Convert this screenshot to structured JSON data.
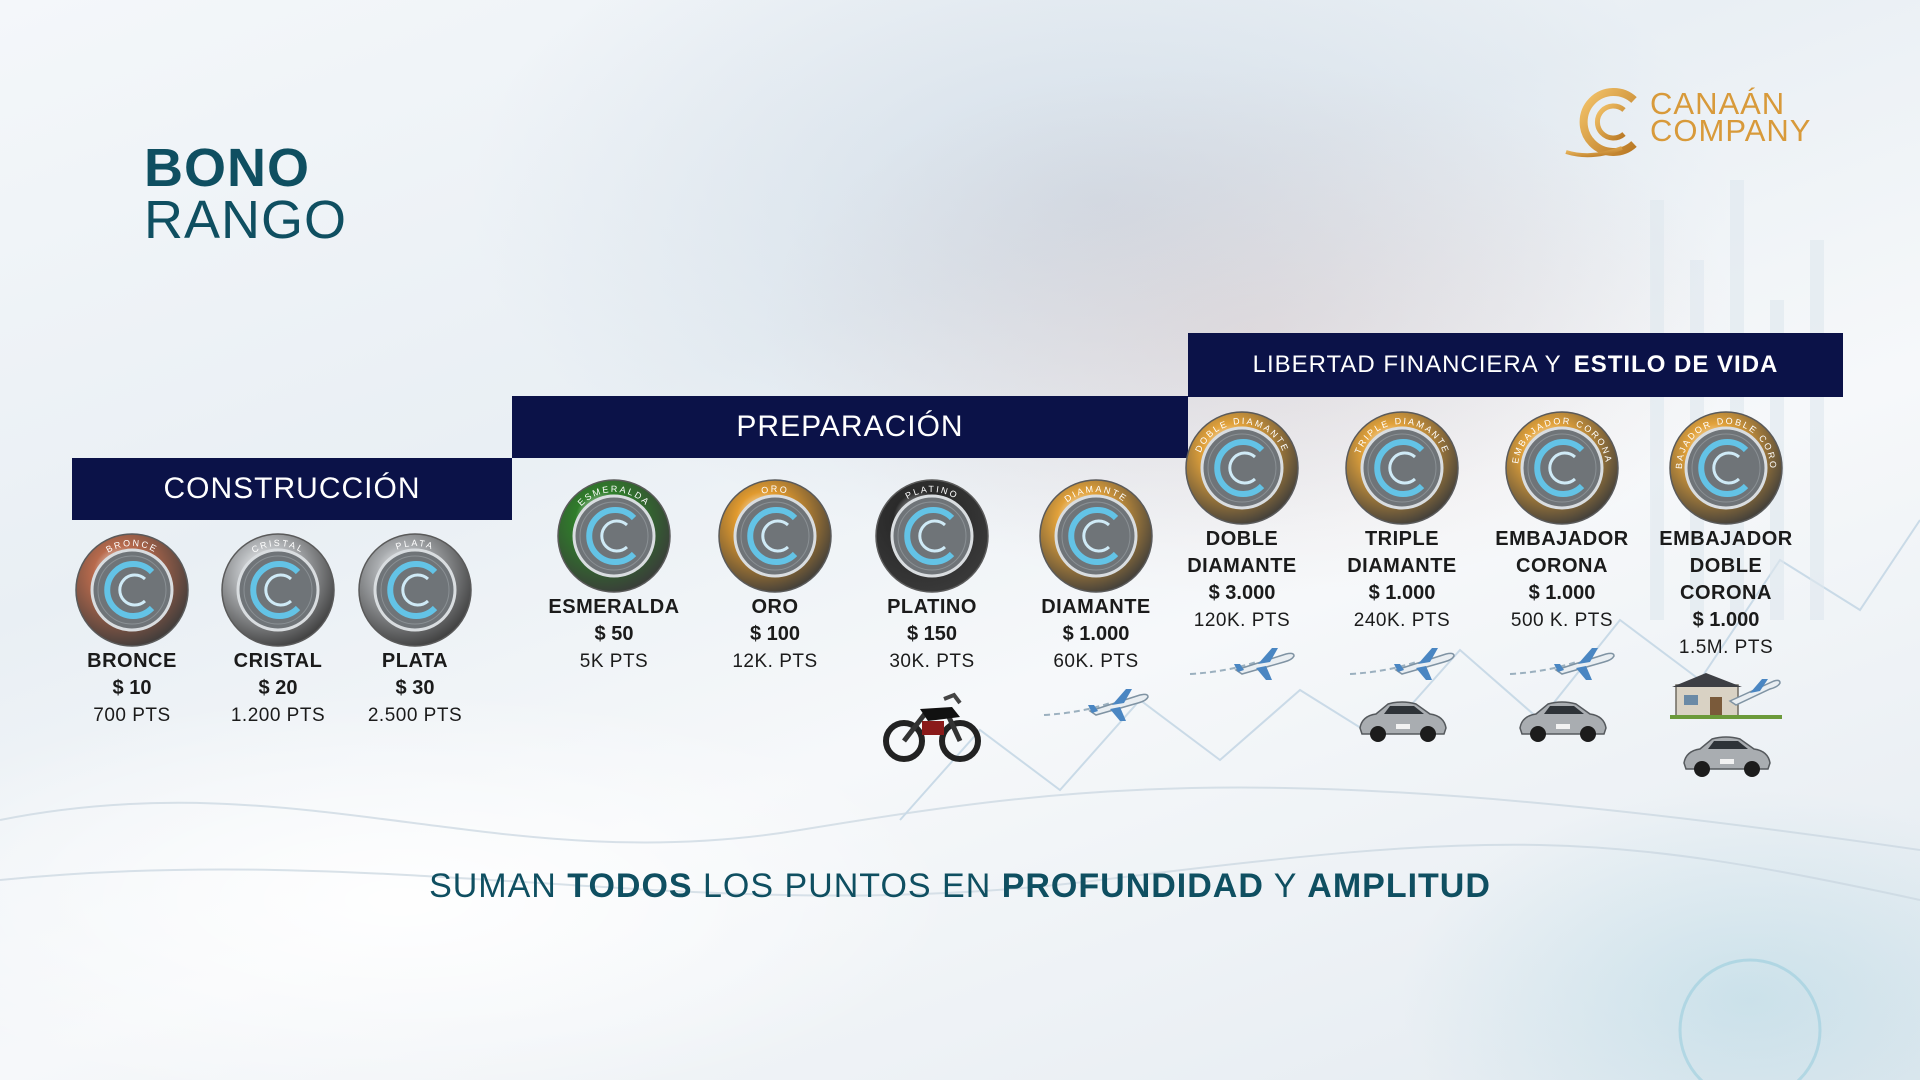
{
  "title": {
    "line1": "BONO",
    "line2": "RANGO"
  },
  "logo": {
    "line1": "CANAÁN",
    "line2": "COMPANY"
  },
  "bands": {
    "construccion": "CONSTRUCCIÓN",
    "preparacion": "PREPARACIÓN",
    "libertad": {
      "regular": "LIBERTAD FINANCIERA Y",
      "bold": "ESTILO DE VIDA"
    }
  },
  "ranks": [
    {
      "name": "BRONCE",
      "price": "$ 10",
      "points": "700 PTS",
      "coin_label": "BRONCE",
      "coin_color": "#b86a4c"
    },
    {
      "name": "CRISTAL",
      "price": "$ 20",
      "points": "1.200 PTS",
      "coin_label": "CRISTAL",
      "coin_color": "#b9bcbf"
    },
    {
      "name": "PLATA",
      "price": "$ 30",
      "points": "2.500 PTS",
      "coin_label": "PLATA",
      "coin_color": "#a9acaf"
    },
    {
      "name": "ESMERALDA",
      "price": "$ 50",
      "points": "5K PTS",
      "coin_label": "ESMERALDA",
      "coin_color": "#2f7d2a"
    },
    {
      "name": "ORO",
      "price": "$ 100",
      "points": "12K.  PTS",
      "coin_label": "ORO",
      "coin_color": "#e19a2e"
    },
    {
      "name": "PLATINO",
      "price": "$ 150",
      "points": "30K.  PTS",
      "coin_label": "PLATINO",
      "coin_color": "#2a2a2a"
    },
    {
      "name": "DIAMANTE",
      "price": "$ 1.000",
      "points": "60K.  PTS",
      "coin_label": "DIAMANTE",
      "coin_color": "#e1a13a"
    },
    {
      "name_l1": "DOBLE",
      "name_l2": "DIAMANTE",
      "price": "$ 3.000",
      "points": "120K.  PTS",
      "coin_label": "DOBLE DIAMANTE",
      "coin_color": "#e2a23a"
    },
    {
      "name_l1": "TRIPLE",
      "name_l2": "DIAMANTE",
      "price": "$ 1.000",
      "points": "240K.  PTS",
      "coin_label": "TRIPLE DIAMANTE",
      "coin_color": "#e2a23a"
    },
    {
      "name_l1": "EMBAJADOR",
      "name_l2": "CORONA",
      "price": "$ 1.000",
      "points": "500 K.  PTS",
      "coin_label": "EMBAJADOR CORONA",
      "coin_color": "#e2a23a"
    },
    {
      "name_l1": "EMBAJADOR",
      "name_l2": "DOBLE CORONA",
      "price": "$ 1.000",
      "points": "1.5M.  PTS",
      "coin_label": "EMBAJADOR DOBLE CORONA",
      "coin_color": "#e2a23a"
    }
  ],
  "footer": {
    "p1": "SUMAN ",
    "b1": "TODOS",
    "p2": " LOS PUNTOS EN ",
    "b2": "PROFUNDIDAD",
    "p3": " Y ",
    "b3": "AMPLITUD"
  },
  "colors": {
    "navy_band": "#0b1248",
    "title_teal": "#0f4f61",
    "logo_gold": "#d89a3a"
  },
  "icons": [
    "motorcycle-icon",
    "airplane-icon",
    "car-icon",
    "house-icon"
  ]
}
